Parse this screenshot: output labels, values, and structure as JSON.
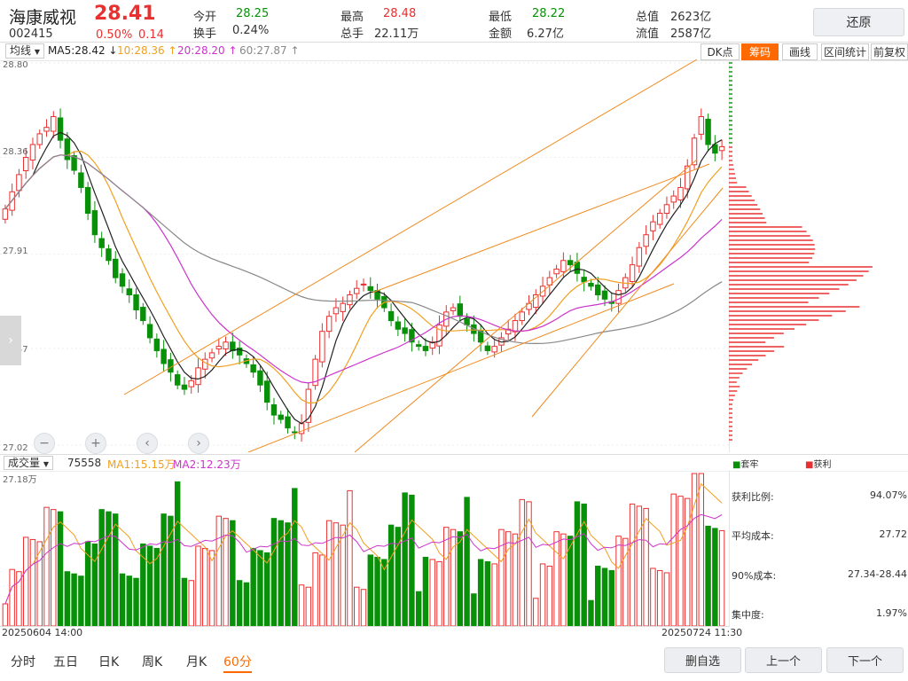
{
  "header": {
    "name": "海康威视",
    "price": "28.41",
    "code": "002415",
    "pct": "0.50%",
    "chg": "0.14",
    "stats": [
      {
        "label": "今开",
        "value": "28.25"
      },
      {
        "label": "换手",
        "value": "0.24%"
      },
      {
        "label": "最高",
        "value": "28.48"
      },
      {
        "label": "总手",
        "value": "22.11万"
      },
      {
        "label": "最低",
        "value": "28.22"
      },
      {
        "label": "金额",
        "value": "6.27亿"
      },
      {
        "label": "总值",
        "value": "2623亿"
      },
      {
        "label": "流值",
        "value": "2587亿"
      }
    ],
    "restore_label": "还原"
  },
  "colors": {
    "up": "#e93030",
    "down": "#089108",
    "ma5": "#222222",
    "ma10": "#f0a020",
    "ma20": "#cc33cc",
    "ma60": "#888888",
    "accent": "#ff6a00",
    "trend": "#f08a20"
  },
  "toolbar": {
    "indicator": "均线",
    "ma5": "MA5:28.42",
    "ma10": "10:28.36",
    "ma20": "20:28.20",
    "ma60": "60:27.87",
    "dk": "DK点",
    "tabs": [
      "筹码",
      "画线",
      "区间统计",
      "前复权"
    ]
  },
  "price_axis": {
    "top": "28.80",
    "p2": "28.36",
    "p3": "27.91",
    "p4": "27.47",
    "bottom": "27.02"
  },
  "price_range": [
    27.02,
    28.8
  ],
  "chart_data": {
    "type": "candlestick",
    "x_start": "20250604 14:00",
    "x_end": "20250724 11:30",
    "ylim": [
      27.02,
      28.8
    ],
    "closes": [
      28.12,
      28.2,
      28.28,
      28.36,
      28.42,
      28.47,
      28.5,
      28.55,
      28.44,
      28.35,
      28.3,
      28.22,
      28.1,
      28.0,
      27.94,
      27.88,
      27.8,
      27.76,
      27.72,
      27.65,
      27.6,
      27.52,
      27.46,
      27.4,
      27.36,
      27.3,
      27.28,
      27.32,
      27.38,
      27.42,
      27.45,
      27.48,
      27.5,
      27.46,
      27.44,
      27.4,
      27.36,
      27.3,
      27.22,
      27.16,
      27.14,
      27.1,
      27.08,
      27.12,
      27.28,
      27.42,
      27.55,
      27.62,
      27.66,
      27.68,
      27.72,
      27.75,
      27.77,
      27.74,
      27.7,
      27.66,
      27.6,
      27.56,
      27.54,
      27.5,
      27.48,
      27.46,
      27.5,
      27.58,
      27.64,
      27.66,
      27.62,
      27.58,
      27.54,
      27.5,
      27.46,
      27.48,
      27.52,
      27.56,
      27.6,
      27.64,
      27.68,
      27.72,
      27.76,
      27.8,
      27.84,
      27.88,
      27.86,
      27.82,
      27.78,
      27.76,
      27.72,
      27.7,
      27.68,
      27.74,
      27.8,
      27.86,
      27.94,
      28.0,
      28.06,
      28.1,
      28.14,
      28.18,
      28.22,
      28.32,
      28.45,
      28.55,
      28.42,
      28.38,
      28.41
    ],
    "volume_ylim": [
      0,
      27.18
    ],
    "ma_volume": {
      "ma1": "15.15万",
      "ma2": "12.23万"
    }
  },
  "vol_bar": {
    "label": "成交量",
    "value": "75558",
    "ma1": "MA1:15.15万",
    "ma2": "MA2:12.23万",
    "max": "27.18万"
  },
  "chips": {
    "legend_loss": "套牢",
    "legend_profit": "获利",
    "rows": [
      {
        "label": "获利比例:",
        "value": "94.07%"
      },
      {
        "label": "平均成本:",
        "value": "27.72"
      },
      {
        "label": "90%成本:",
        "value": "27.34-28.44"
      },
      {
        "label": "集中度:",
        "value": "1.97%"
      }
    ]
  },
  "dates": {
    "start": "20250604 14:00",
    "end": "20250724 11:30"
  },
  "controls": [
    "−",
    "+",
    "‹",
    "›"
  ],
  "bottom": {
    "tabs": [
      "分时",
      "五日",
      "日K",
      "周K",
      "月K",
      "60分"
    ],
    "active_tab": "60分",
    "buttons": [
      "删自选",
      "上一个",
      "下一个"
    ]
  }
}
